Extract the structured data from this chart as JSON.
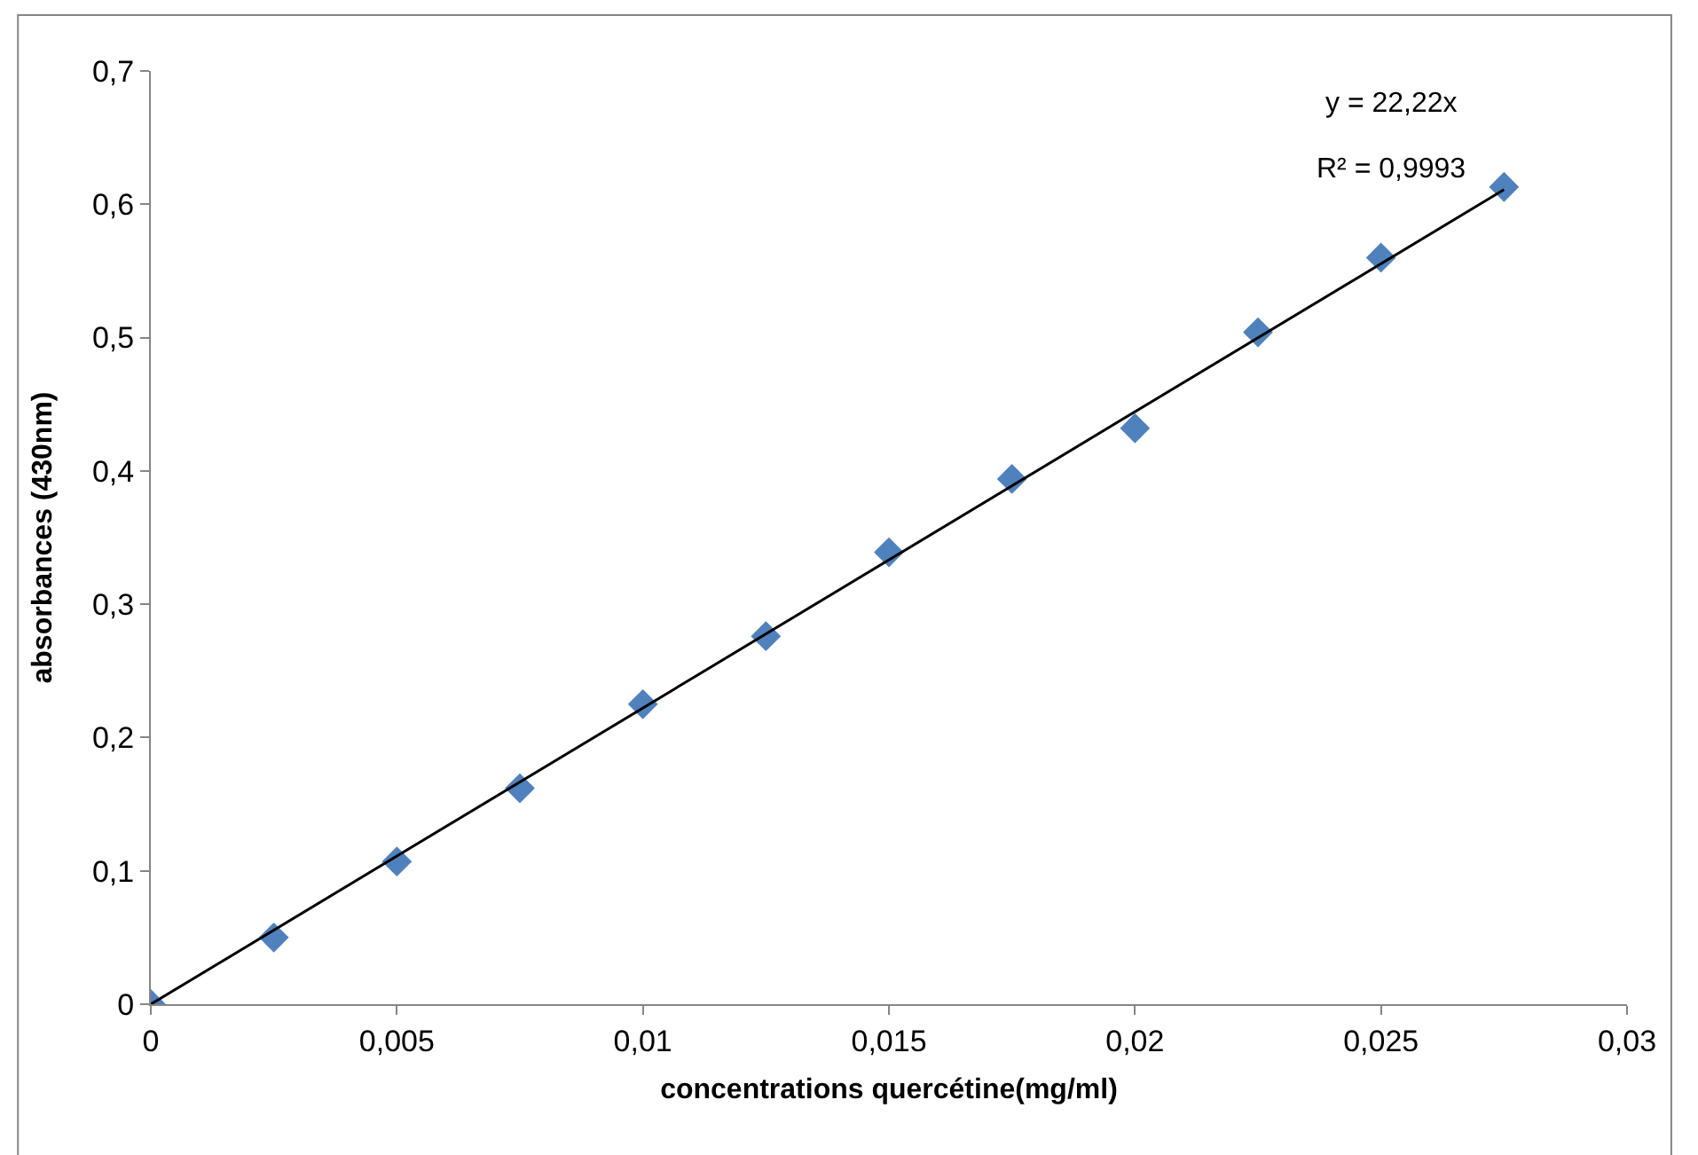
{
  "chart_data": {
    "type": "scatter",
    "xlabel": "concentrations quercétine(mg/ml)",
    "ylabel": "absorbances (430nm)",
    "annotations": [
      "y = 22,22x",
      "R² = 0,9993"
    ],
    "series": [
      {
        "color": "#4f81bd",
        "marker": "diamond",
        "x": [
          0,
          0.0025,
          0.005,
          0.0075,
          0.01,
          0.0125,
          0.015,
          0.0175,
          0.02,
          0.0225,
          0.025,
          0.0275
        ],
        "values": [
          0,
          0.05,
          0.107,
          0.162,
          0.225,
          0.276,
          0.339,
          0.394,
          0.432,
          0.504,
          0.56,
          0.613
        ]
      },
      {
        "type": "line",
        "color": "#000000",
        "line_style": "solid",
        "x": [
          0,
          0.0275
        ],
        "values": [
          0,
          0.611
        ]
      }
    ],
    "xlim": [
      0,
      0.03
    ],
    "ylim": [
      0,
      0.7
    ],
    "xticks": [
      0,
      {
        "value": 0.005,
        "label": "0,005"
      },
      {
        "value": 0.01,
        "label": "0,01"
      },
      {
        "value": 0.015,
        "label": "0,015"
      },
      {
        "value": 0.02,
        "label": "0,02"
      },
      {
        "value": 0.025,
        "label": "0,025"
      },
      {
        "value": 0.03,
        "label": "0,03"
      }
    ],
    "yticks": [
      0,
      {
        "value": 0.1,
        "label": "0,1"
      },
      {
        "value": 0.2,
        "label": "0,2"
      },
      {
        "value": 0.3,
        "label": "0,3"
      },
      {
        "value": 0.4,
        "label": "0,4"
      },
      {
        "value": 0.5,
        "label": "0,5"
      },
      {
        "value": 0.6,
        "label": "0,6"
      },
      {
        "value": 0.7,
        "label": "0,7"
      }
    ],
    "grid": false
  }
}
